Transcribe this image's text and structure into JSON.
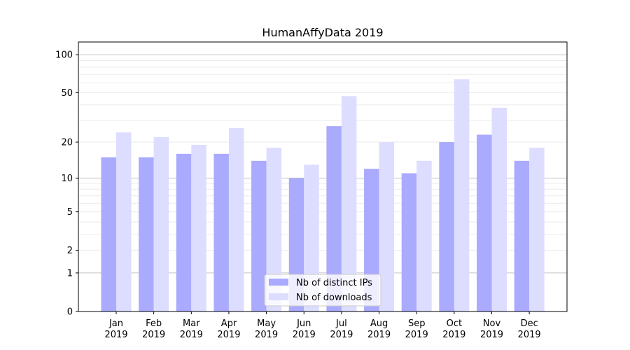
{
  "chart_data": {
    "type": "bar",
    "title": "HumanAffyData 2019",
    "xlabel": "",
    "ylabel": "",
    "yscale": "log(1+y)",
    "ylim": [
      0,
      120
    ],
    "yticks": [
      0,
      1,
      2,
      5,
      10,
      20,
      50,
      100
    ],
    "grid": true,
    "legend_position": "bottom-center",
    "categories": [
      "Jan\n2019",
      "Feb\n2019",
      "Mar\n2019",
      "Apr\n2019",
      "May\n2019",
      "Jun\n2019",
      "Jul\n2019",
      "Aug\n2019",
      "Sep\n2019",
      "Oct\n2019",
      "Nov\n2019",
      "Dec\n2019"
    ],
    "series": [
      {
        "name": "Nb of distinct IPs",
        "color": "#aaaaff",
        "values": [
          15,
          15,
          16,
          16,
          14,
          10,
          27,
          12,
          11,
          20,
          23,
          14
        ]
      },
      {
        "name": "Nb of downloads",
        "color": "#ddddff",
        "values": [
          24,
          22,
          19,
          26,
          18,
          13,
          47,
          20,
          14,
          64,
          38,
          18
        ]
      }
    ]
  }
}
